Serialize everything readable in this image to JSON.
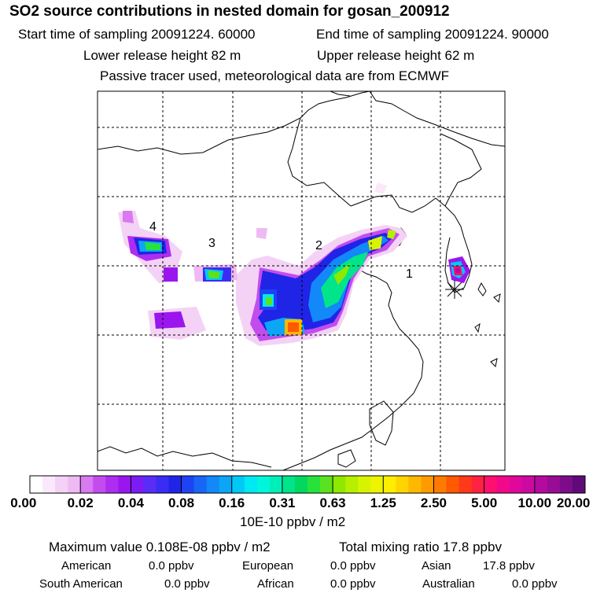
{
  "title": "SO2 source contributions in nested domain for gosan_200912",
  "header": {
    "start_sampling": "Start time of sampling 20091224. 60000",
    "end_sampling": "End time of sampling 20091224. 90000",
    "lower_release": "Lower release height   82 m",
    "upper_release": "Upper release height   62 m",
    "note": "Passive tracer used, meteorological data are from ECMWF"
  },
  "map": {
    "region_labels": [
      "4",
      "3",
      "2",
      "1"
    ],
    "receptor_symbol": "asterisk-marker"
  },
  "colorbar": {
    "unit": "10E-10 ppbv / m2",
    "ticks": [
      "0.00",
      "0.02",
      "0.04",
      "0.08",
      "0.16",
      "0.31",
      "0.63",
      "1.25",
      "2.50",
      "5.00",
      "10.00",
      "20.00"
    ],
    "colors": [
      "#ffffff",
      "#fbe8fb",
      "#f4d2f6",
      "#eebaf3",
      "#d97af0",
      "#c34cef",
      "#ae2df0",
      "#9b16ee",
      "#7a1cf3",
      "#5a2cf7",
      "#3a2cf5",
      "#2024e6",
      "#1d43f2",
      "#1766f6",
      "#1388f8",
      "#0ca6f7",
      "#00c9f6",
      "#00e8f2",
      "#00f6dc",
      "#00efb8",
      "#00e58a",
      "#00d860",
      "#28e23c",
      "#5ae21e",
      "#8fe800",
      "#b6ef00",
      "#d8f300",
      "#eef300",
      "#ffee00",
      "#ffd400",
      "#ffb800",
      "#ff9a00",
      "#ff7a00",
      "#ff5a00",
      "#ff3a1a",
      "#ff2240",
      "#ff0f70",
      "#f2088a",
      "#e0089c",
      "#cc0aa2",
      "#b40aa0",
      "#980c96",
      "#7c0c8a",
      "#600a7a"
    ]
  },
  "summary": {
    "max_value": "Maximum value  0.108E-08 ppbv / m2",
    "total_mixing": "Total mixing ratio       17.8 ppbv",
    "american_label": "American",
    "american_value": "0.0 ppbv",
    "european_label": "European",
    "european_value": "0.0 ppbv",
    "asian_label": "Asian",
    "asian_value": "17.8 ppbv",
    "south_american_label": "South American",
    "south_american_value": "0.0 ppbv",
    "african_label": "African",
    "african_value": "0.0 ppbv",
    "australian_label": "Australian",
    "australian_value": "0.0 ppbv"
  }
}
